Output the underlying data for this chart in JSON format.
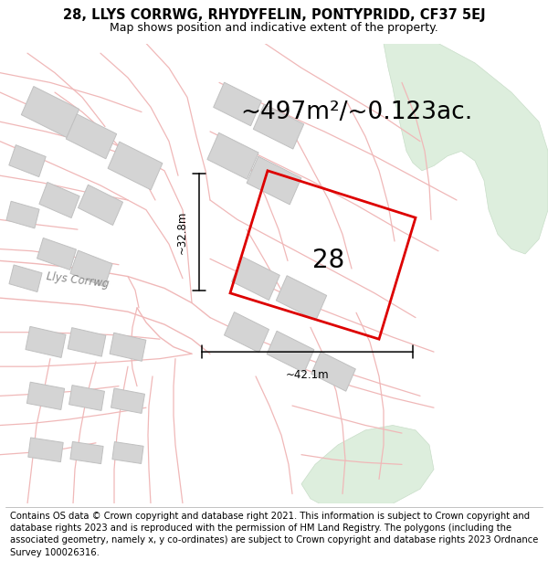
{
  "title_line1": "28, LLYS CORRWG, RHYDYFELIN, PONTYPRIDD, CF37 5EJ",
  "title_line2": "Map shows position and indicative extent of the property.",
  "area_text": "~497m²/~0.123ac.",
  "label_28": "28",
  "dim_vertical": "~32.8m",
  "dim_horizontal": "~42.1m",
  "footer_text": "Contains OS data © Crown copyright and database right 2021. This information is subject to Crown copyright and database rights 2023 and is reproduced with the permission of HM Land Registry. The polygons (including the associated geometry, namely x, y co-ordinates) are subject to Crown copyright and database rights 2023 Ordnance Survey 100026316.",
  "bg_color": "#ffffff",
  "map_bg": "#f8f8f6",
  "boundary_color": "#f0b8b8",
  "building_fill": "#d4d4d4",
  "building_outline": "#c0c0c0",
  "green_area": "#ddeedd",
  "green_outline": "#c8ddc8",
  "highlight_color": "#dd0000",
  "highlight_lw": 2.0,
  "street_label": "Llys Corrwg",
  "title_fontsize": 10.5,
  "subtitle_fontsize": 9,
  "area_fontsize": 19,
  "label_fontsize": 20,
  "dim_fontsize": 8.5,
  "footer_fontsize": 7.2,
  "street_fontsize": 8.5
}
